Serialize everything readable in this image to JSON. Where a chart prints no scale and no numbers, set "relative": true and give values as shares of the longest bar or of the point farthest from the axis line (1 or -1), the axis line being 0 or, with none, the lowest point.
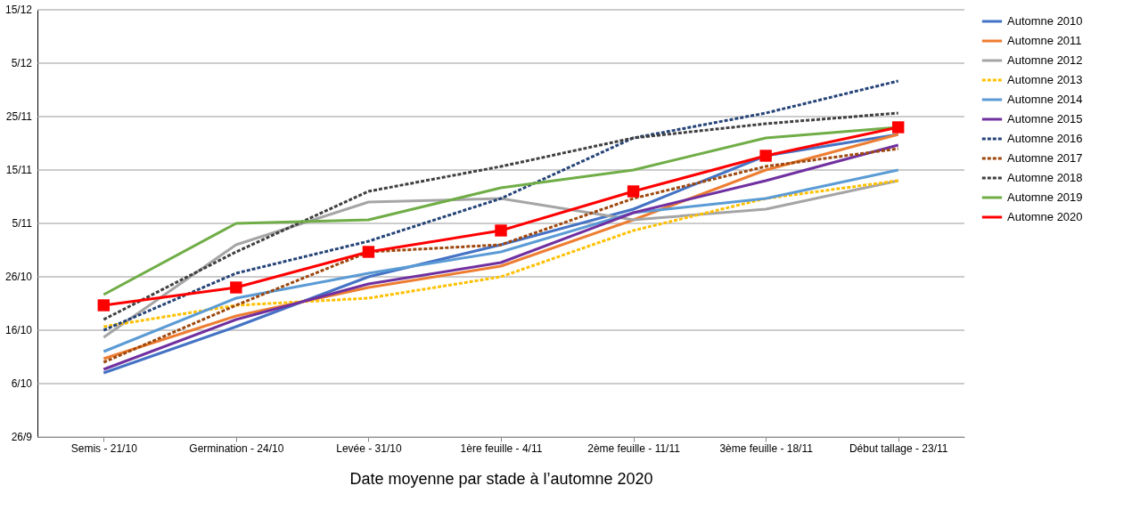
{
  "chart_data": {
    "type": "line",
    "xlabel": "Date moyenne par stade à l’automne 2020",
    "relative": true,
    "categories": [
      "Semis - 21/10",
      "Germination - 24/10",
      "Levée - 31/10",
      "1ère feuille - 4/11",
      "2ème feuille - 11/11",
      "3ème feuille - 18/11",
      "Début tallage - 23/11"
    ],
    "annotations": [
      "26/9",
      "6/10",
      "16/10",
      "26/10",
      "5/11",
      "15/11",
      "25/11",
      "5/12",
      "15/12"
    ],
    "grid": "y",
    "legend": "right",
    "marker": "none",
    "series": [
      {
        "name": "Automne 2010",
        "color": "#4472c4",
        "line_style": "solid",
        "values": [
          0.18,
          0.31,
          0.45,
          0.54,
          0.64,
          0.79,
          0.85
        ]
      },
      {
        "name": "Automne 2011",
        "color": "#ed7d31",
        "line_style": "solid",
        "values": [
          0.22,
          0.34,
          0.42,
          0.48,
          0.61,
          0.75,
          0.85
        ]
      },
      {
        "name": "Automne 2012",
        "color": "#a5a5a5",
        "line_style": "solid",
        "values": [
          0.28,
          0.54,
          0.66,
          0.67,
          0.61,
          0.64,
          0.72
        ]
      },
      {
        "name": "Automne 2013",
        "color": "#ffc000",
        "line_style": "dashed",
        "values": [
          0.31,
          0.37,
          0.39,
          0.45,
          0.58,
          0.67,
          0.72
        ]
      },
      {
        "name": "Automne 2014",
        "color": "#5b9bd5",
        "line_style": "solid",
        "values": [
          0.24,
          0.39,
          0.46,
          0.52,
          0.63,
          0.67,
          0.75
        ]
      },
      {
        "name": "Automne 2015",
        "color": "#7030a0",
        "line_style": "solid",
        "values": [
          0.19,
          0.33,
          0.43,
          0.49,
          0.63,
          0.72,
          0.82
        ]
      },
      {
        "name": "Automne 2016",
        "color": "#264478",
        "line_style": "dashed",
        "values": [
          0.3,
          0.46,
          0.55,
          0.67,
          0.84,
          0.91,
          1
        ]
      },
      {
        "name": "Automne 2017",
        "color": "#9e480e",
        "line_style": "dashed",
        "values": [
          0.21,
          0.37,
          0.52,
          0.54,
          0.67,
          0.76,
          0.81
        ]
      },
      {
        "name": "Automne 2018",
        "color": "#404040",
        "line_style": "dashed",
        "values": [
          0.33,
          0.52,
          0.69,
          0.76,
          0.84,
          0.88,
          0.91
        ]
      },
      {
        "name": "Automne 2019",
        "color": "#70ad47",
        "line_style": "solid",
        "values": [
          0.4,
          0.6,
          0.61,
          0.7,
          0.75,
          0.84,
          0.87
        ]
      },
      {
        "name": "Automne 2020",
        "color": "#ff0000",
        "line_style": "solid",
        "marker": "square",
        "values": [
          0.37,
          0.42,
          0.52,
          0.58,
          0.69,
          0.79,
          0.87
        ]
      }
    ]
  }
}
